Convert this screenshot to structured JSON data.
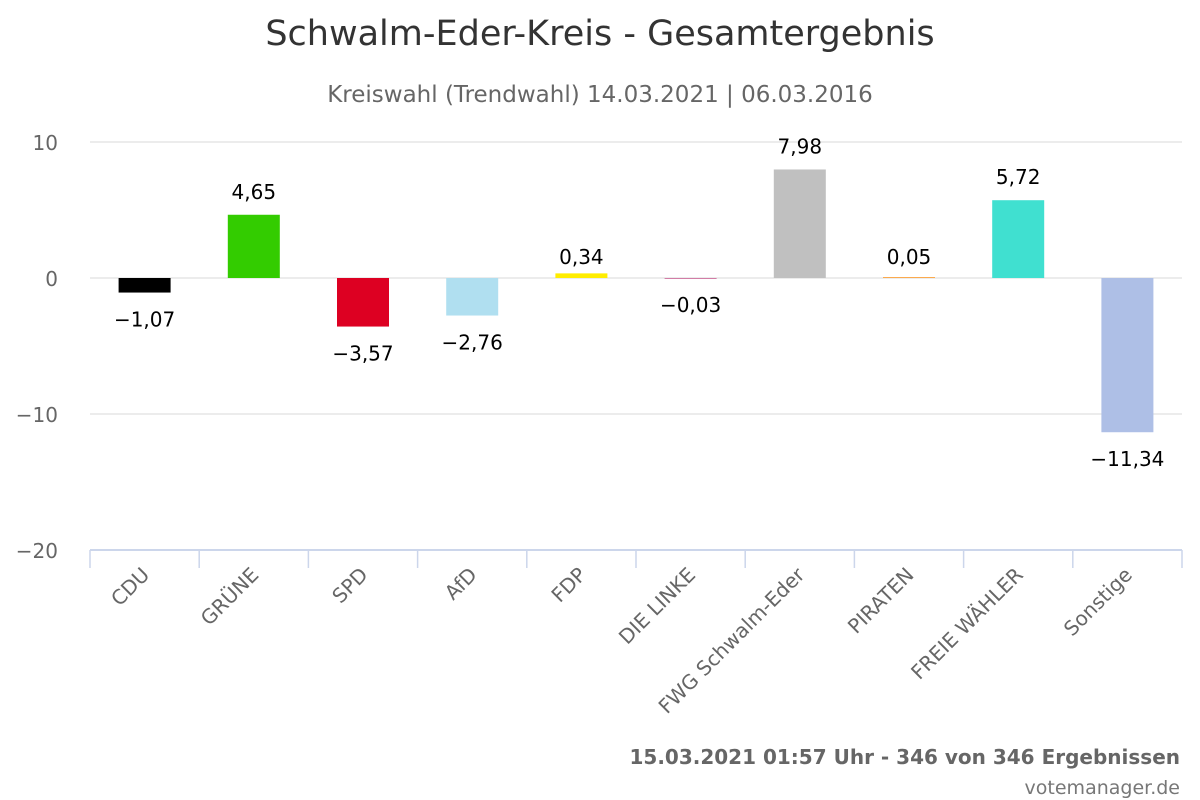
{
  "chart_data": {
    "type": "bar",
    "title": "Schwalm-Eder-Kreis - Gesamtergebnis",
    "subtitle": "Kreiswahl (Trendwahl) 14.03.2021 | 06.03.2016",
    "categories": [
      "CDU",
      "GRÜNE",
      "SPD",
      "AfD",
      "FDP",
      "DIE LINKE",
      "FWG Schwalm-Eder",
      "PIRATEN",
      "FREIE WÄHLER",
      "Sonstige"
    ],
    "values": [
      -1.07,
      4.65,
      -3.57,
      -2.76,
      0.34,
      -0.03,
      7.98,
      0.05,
      5.72,
      -11.34
    ],
    "value_labels": [
      "−1,07",
      "4,65",
      "−3,57",
      "−2,76",
      "0,34",
      "−0,03",
      "7,98",
      "0,05",
      "5,72",
      "−11,34"
    ],
    "colors": [
      "#000000",
      "#33cc00",
      "#dd0022",
      "#b0dff0",
      "#ffed00",
      "#be3075",
      "#c0c0c0",
      "#ff8800",
      "#40e0d0",
      "#aebfe6"
    ],
    "ylim": [
      -20,
      10
    ],
    "yticks": [
      10,
      0,
      -10,
      -20
    ],
    "ytick_labels": [
      "10",
      "0",
      "−10",
      "−20"
    ],
    "xlabel": "",
    "ylabel": "",
    "grid": true
  },
  "footer": {
    "info": "15.03.2021 01:57 Uhr - 346 von 346 Ergebnissen",
    "credit": "votemanager.de"
  }
}
